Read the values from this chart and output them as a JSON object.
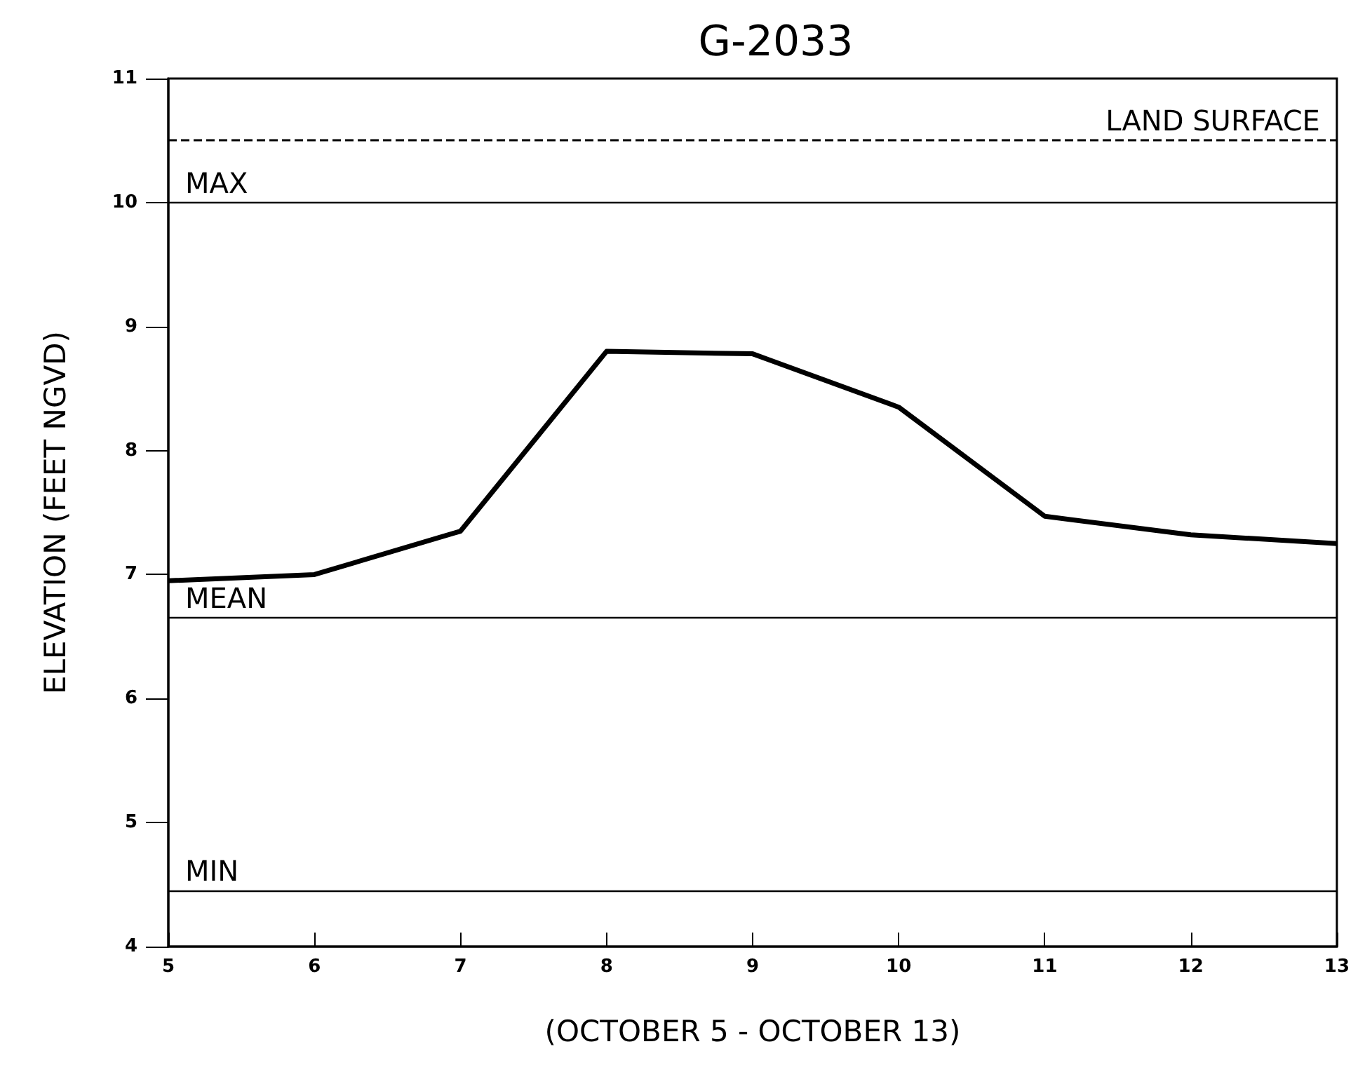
{
  "chart_data": {
    "type": "line",
    "title": "G-2033",
    "xlabel": "(OCTOBER 5 - OCTOBER 13)",
    "ylabel": "ELEVATION (FEET NGVD)",
    "x": [
      5,
      6,
      7,
      8,
      9,
      10,
      11,
      12,
      13
    ],
    "series": [
      {
        "color": "#000000",
        "values": [
          6.95,
          7.0,
          7.35,
          8.8,
          8.78,
          8.35,
          7.47,
          7.32,
          7.25
        ]
      }
    ],
    "xlim": [
      5,
      13
    ],
    "xticks": [
      5,
      6,
      7,
      8,
      9,
      10,
      11,
      12,
      13
    ],
    "ylim": [
      4,
      11
    ],
    "yticks": [
      4,
      5,
      6,
      7,
      8,
      9,
      10,
      11
    ],
    "ref_lines": [
      {
        "axis": "y",
        "value": 10.5,
        "label": "LAND SURFACE",
        "color": "#000000",
        "line_style": "dashed"
      },
      {
        "axis": "y",
        "value": 10.0,
        "label": "MAX",
        "color": "#000000",
        "line_style": "solid"
      },
      {
        "axis": "y",
        "value": 6.65,
        "label": "MEAN",
        "color": "#000000",
        "line_style": "solid"
      },
      {
        "axis": "y",
        "value": 4.45,
        "label": "MIN",
        "color": "#000000",
        "line_style": "solid"
      }
    ],
    "grid": false,
    "marker": "none",
    "line_style": "solid"
  }
}
